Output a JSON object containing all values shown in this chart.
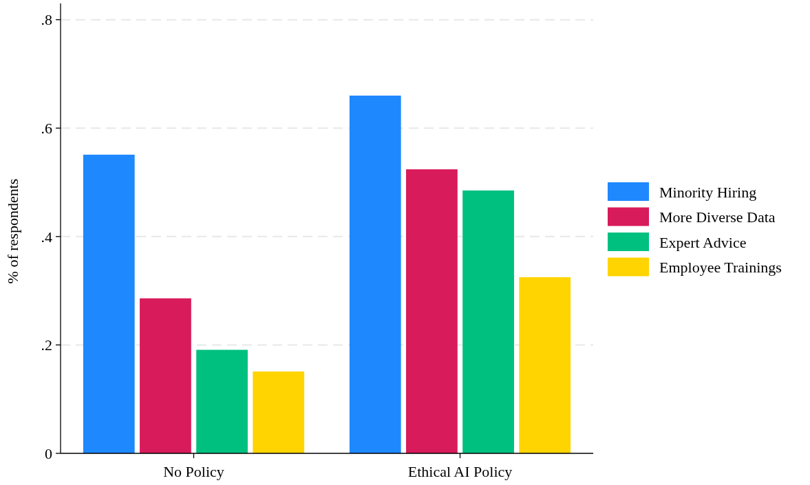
{
  "chart_data": {
    "type": "bar",
    "ylabel": "% of respondents",
    "categories": [
      "No Policy",
      "Ethical AI Policy"
    ],
    "series": [
      {
        "name": "Minority Hiring",
        "color": "#1e88ff",
        "values": [
          0.551,
          0.66
        ]
      },
      {
        "name": "More Diverse Data",
        "color": "#d81b5b",
        "values": [
          0.286,
          0.524
        ]
      },
      {
        "name": "Expert Advice",
        "color": "#00c07f",
        "values": [
          0.191,
          0.485
        ]
      },
      {
        "name": "Employee Trainings",
        "color": "#ffd400",
        "values": [
          0.151,
          0.325
        ]
      }
    ],
    "ylim": [
      0,
      0.83
    ],
    "yticks": [
      {
        "value": 0,
        "label": "0"
      },
      {
        "value": 0.2,
        "label": ".2"
      },
      {
        "value": 0.4,
        "label": ".4"
      },
      {
        "value": 0.6,
        "label": ".6"
      },
      {
        "value": 0.8,
        "label": ".8"
      }
    ],
    "grid": "y",
    "legend": "right"
  }
}
